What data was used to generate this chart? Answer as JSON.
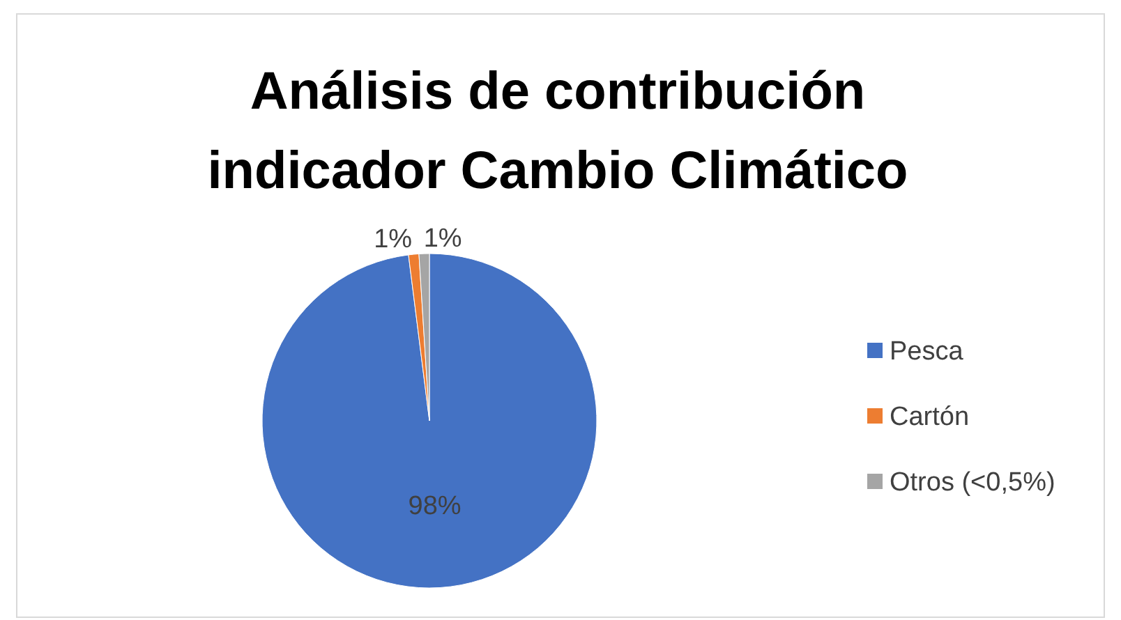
{
  "chart_data": {
    "type": "pie",
    "title": "Análisis de contribución indicador Cambio Climático",
    "categories": [
      "Pesca",
      "Cartón",
      "Otros (<0,5%)"
    ],
    "values": [
      98,
      1,
      1
    ],
    "colors": [
      "#4472c4",
      "#ed7d31",
      "#a5a5a5"
    ],
    "value_labels": [
      "98%",
      "1%",
      "1%"
    ],
    "legend": "right"
  }
}
